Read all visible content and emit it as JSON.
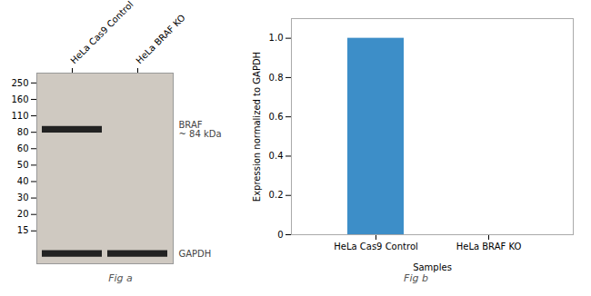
{
  "chart_data": [
    {
      "type": "western_blot",
      "title": "Fig a",
      "categories": [
        "HeLa Cas9 Control",
        "HeLa BRAF KO"
      ],
      "markers": [
        250,
        160,
        110,
        80,
        60,
        50,
        40,
        30,
        20,
        15
      ],
      "bands": [
        {
          "name": "BRAF",
          "label": "~ 84 kDa",
          "kda": 84,
          "lanes": [
            true,
            false
          ]
        },
        {
          "name": "GAPDH",
          "lanes": [
            true,
            true
          ]
        }
      ]
    },
    {
      "type": "bar",
      "title": "Fig b",
      "categories": [
        "HeLa Cas9 Control",
        "HeLa BRAF KO"
      ],
      "values": [
        1.0,
        0.0
      ],
      "color": "#3d8ec8",
      "xlabel": "Samples",
      "ylabel": "Expression normalized to GAPDH",
      "ylim": [
        0,
        1.1
      ],
      "yticks": [
        0,
        0.2,
        0.4,
        0.6,
        0.8,
        {
          "value": 1.0,
          "label": "1.0"
        }
      ],
      "grid": false
    }
  ]
}
